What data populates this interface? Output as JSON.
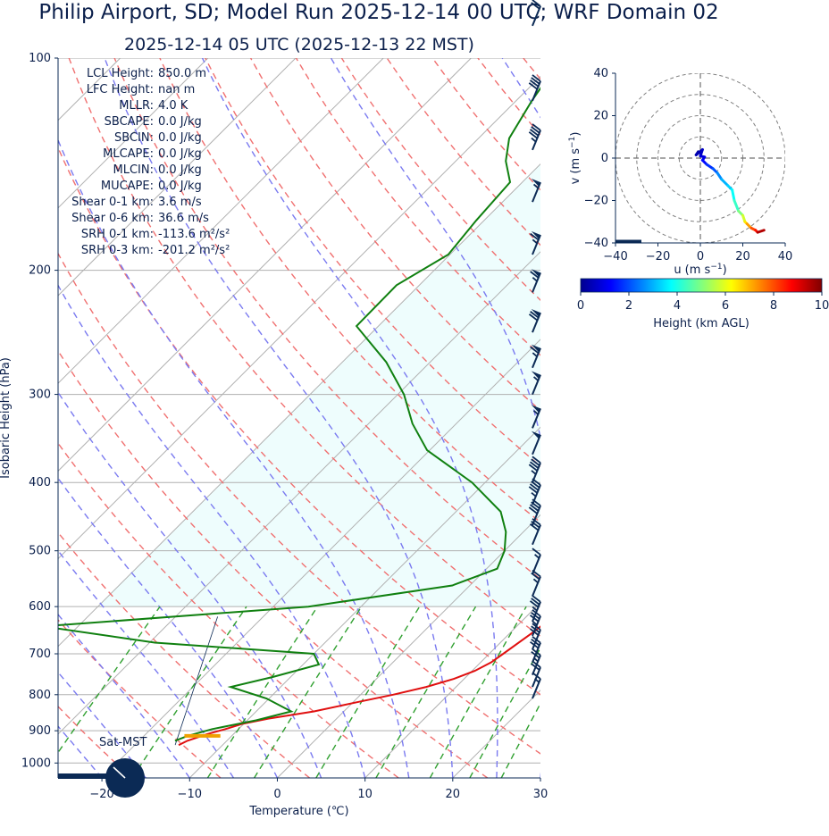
{
  "title": "Philip Airport, SD; Model Run 2025-12-14 00 UTC; WRF Domain 02",
  "subtitle": "2025-12-14 05 UTC  (2025-12-13 22 MST)",
  "colors": {
    "navy": "#0b2a55",
    "temperature": "#e01010",
    "dewpoint": "#108010",
    "dry_adiabat": "#f07070",
    "moist_adiabat": "#7a7af0",
    "mixing_ratio": "#30a030",
    "shade": "#eefdfd",
    "sat_marker": "#f0a000"
  },
  "stats": [
    {
      "label": "LCL Height:",
      "value": "850.0 m"
    },
    {
      "label": "LFC Height:",
      "value": "nan m"
    },
    {
      "label": "MLLR:",
      "value": "4.0 K"
    },
    {
      "label": "SBCAPE:",
      "value": "0.0 J/kg"
    },
    {
      "label": "SBCIN:",
      "value": "0.0 J/kg"
    },
    {
      "label": "MLCAPE:",
      "value": "0.0 J/kg"
    },
    {
      "label": "MLCIN:",
      "value": "0.0 J/kg"
    },
    {
      "label": "MUCAPE:",
      "value": "0.0 J/kg"
    },
    {
      "label": "Shear 0-1 km:",
      "value": "3.6 m/s"
    },
    {
      "label": "Shear 0-6 km:",
      "value": "36.6 m/s"
    },
    {
      "label": "SRH 0-1 km:",
      "value": "-113.6 m²/s²"
    },
    {
      "label": "SRH 0-3 km:",
      "value": "-201.2 m²/s²"
    }
  ],
  "sat_label": "Sat-MST",
  "chart_data": [
    {
      "type": "line",
      "name": "skew-t",
      "xlabel": "Temperature (℃)",
      "ylabel": "Isobaric Height (hPa)",
      "x_ticks": [
        -20,
        -10,
        0,
        10,
        20,
        30
      ],
      "y_ticks": [
        100,
        200,
        300,
        400,
        500,
        600,
        700,
        800,
        900,
        1000
      ],
      "xlim": [
        -25,
        30
      ],
      "ylim": [
        1050,
        100
      ],
      "series": [
        {
          "key": "temperature",
          "pressure": [
            943,
            930,
            910,
            895,
            880,
            865,
            845,
            820,
            800,
            780,
            760,
            740,
            720,
            700,
            650,
            600,
            560,
            530,
            500,
            470,
            440,
            400,
            350,
            300,
            250,
            210,
            190,
            175,
            160,
            145,
            130,
            115,
            100
          ],
          "values": [
            -15,
            -14.5,
            -13,
            -11.5,
            -10.2,
            -7.8,
            -3.4,
            0.4,
            3.7,
            6.6,
            8.8,
            10.3,
            11.2,
            11.6,
            12.6,
            13.3,
            14.5,
            15.1,
            14.6,
            13.2,
            11.5,
            9.9,
            6.8,
            4.3,
            2.1,
            -2.1,
            -4.8,
            -6.7,
            -8.9,
            -11.4,
            -13.8,
            -16.8,
            -19.6
          ]
        },
        {
          "key": "dewpoint",
          "pressure": [
            930,
            915,
            895,
            870,
            845,
            810,
            780,
            755,
            725,
            700,
            675,
            640,
            600,
            560,
            530,
            500,
            470,
            440,
            400,
            360,
            330,
            300,
            270,
            240,
            210,
            190,
            170,
            150,
            140,
            130,
            115,
            100
          ],
          "values": [
            -15.9,
            -15,
            -13,
            -9,
            -6,
            -10.3,
            -15.7,
            -12,
            -8.2,
            -10,
            -29.4,
            -44,
            -16,
            -2,
            1.2,
            0,
            -2,
            -4.9,
            -11.5,
            -20.3,
            -25,
            -29.3,
            -35,
            -42.5,
            -42.6,
            -40.2,
            -40.9,
            -41.4,
            -44.3,
            -46.5,
            -48.2,
            -49.7
          ]
        }
      ],
      "sat_pressure": 915,
      "sat_range": [
        -15.4,
        -11.3
      ],
      "wind_barbs": {
        "pressure": [
          90,
          115,
          135,
          160,
          190,
          215,
          245,
          275,
          300,
          335,
          365,
          400,
          430,
          460,
          490,
          540,
          580,
          630,
          660,
          690,
          720,
          750,
          780,
          810
        ],
        "speed_kt": [
          20,
          40,
          45,
          55,
          65,
          65,
          70,
          65,
          55,
          55,
          50,
          45,
          45,
          40,
          30,
          15,
          25,
          35,
          35,
          30,
          30,
          25,
          20,
          15
        ]
      }
    },
    {
      "type": "line",
      "name": "hodograph",
      "xlabel": "u (m s−1)",
      "ylabel": "v (m s−1)",
      "x_ticks": [
        -40,
        -20,
        0,
        20,
        40
      ],
      "y_ticks": [
        40,
        20,
        0,
        -20,
        -40
      ],
      "xlim": [
        -40,
        40
      ],
      "ylim": [
        -40,
        40
      ],
      "rings": [
        10,
        20,
        30,
        40
      ],
      "points": [
        {
          "u": -1,
          "v": 3,
          "h": 0
        },
        {
          "u": -2,
          "v": 1.5,
          "h": 0.2
        },
        {
          "u": 1,
          "v": 4,
          "h": 0.4
        },
        {
          "u": 0,
          "v": 1,
          "h": 0.6
        },
        {
          "u": 2,
          "v": 0.5,
          "h": 0.8
        },
        {
          "u": 1,
          "v": -1,
          "h": 1
        },
        {
          "u": 3,
          "v": -3,
          "h": 1.3
        },
        {
          "u": 6,
          "v": -5,
          "h": 1.7
        },
        {
          "u": 8,
          "v": -7,
          "h": 2.1
        },
        {
          "u": 10,
          "v": -10,
          "h": 2.6
        },
        {
          "u": 13,
          "v": -13,
          "h": 3
        },
        {
          "u": 15,
          "v": -15,
          "h": 3.3
        },
        {
          "u": 16,
          "v": -20,
          "h": 3.8
        },
        {
          "u": 18,
          "v": -25,
          "h": 4.3
        },
        {
          "u": 20,
          "v": -27,
          "h": 5
        },
        {
          "u": 21,
          "v": -30,
          "h": 5.8
        },
        {
          "u": 22,
          "v": -31,
          "h": 6.5
        },
        {
          "u": 24,
          "v": -33,
          "h": 7.2
        },
        {
          "u": 26,
          "v": -34,
          "h": 8
        },
        {
          "u": 27,
          "v": -35,
          "h": 8.6
        },
        {
          "u": 30,
          "v": -34,
          "h": 9.5
        }
      ],
      "colorbar_label": "Height (km AGL)",
      "colorbar_ticks": [
        0,
        2,
        4,
        6,
        8,
        10
      ]
    }
  ]
}
